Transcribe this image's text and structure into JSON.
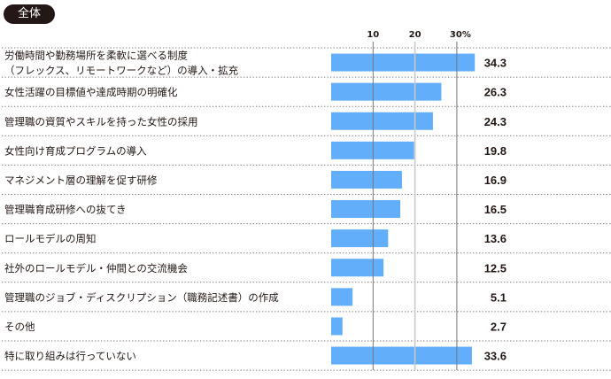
{
  "chart_data": {
    "type": "bar",
    "orientation": "horizontal",
    "title": "全体",
    "categories": [
      [
        "労働時間や勤務場所を柔軟に選べる制度",
        "（フレックス、リモートワークなど）の導入・拡充"
      ],
      [
        "女性活躍の目標値や達成時期の明確化"
      ],
      [
        "管理職の資質やスキルを持った女性の採用"
      ],
      [
        "女性向け育成プログラムの導入"
      ],
      [
        "マネジメント層の理解を促す研修"
      ],
      [
        "管理職育成研修への抜てき"
      ],
      [
        "ロールモデルの周知"
      ],
      [
        "社外のロールモデル・仲間との交流機会"
      ],
      [
        "管理職のジョブ・ディスクリプション（職務記述書）の作成"
      ],
      [
        "その他"
      ],
      [
        "特に取り組みは行っていない"
      ]
    ],
    "values": [
      34.3,
      26.3,
      24.3,
      19.8,
      16.9,
      16.5,
      13.6,
      12.5,
      5.1,
      2.7,
      33.6
    ],
    "value_labels": [
      "34.3",
      "26.3",
      "24.3",
      "19.8",
      "16.9",
      "16.5",
      "13.6",
      "12.5",
      "5.1",
      "2.7",
      "33.6"
    ],
    "x_ticks": [
      "10",
      "20",
      "30%"
    ],
    "x_tick_values": [
      10,
      20,
      30
    ],
    "xlim": [
      0,
      40
    ],
    "grid": true,
    "bar_color": "#62aefa"
  }
}
